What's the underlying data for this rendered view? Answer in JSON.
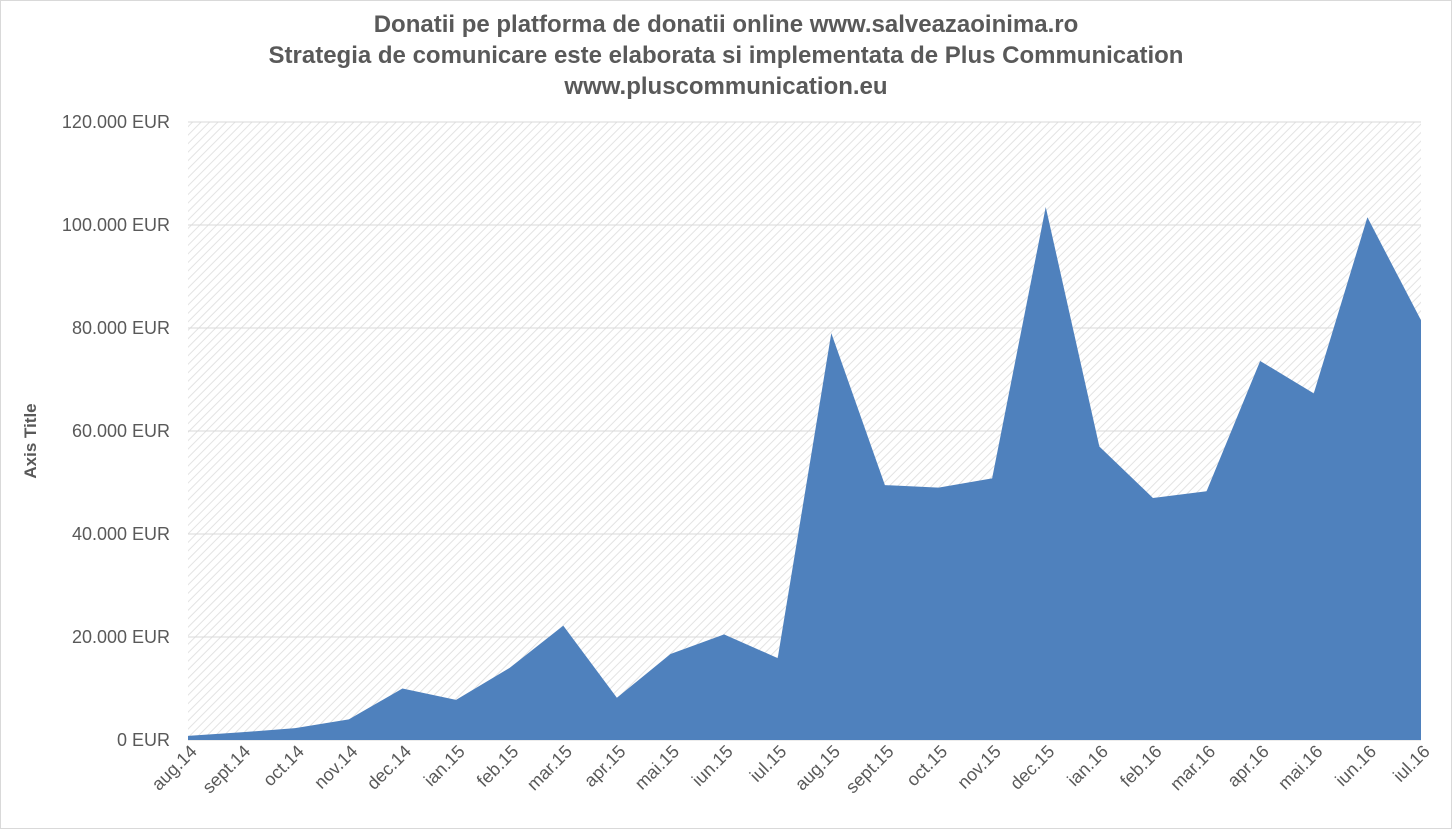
{
  "chart_data": {
    "type": "area",
    "title": [
      "Donatii pe platforma de donatii online www.salveazaoinima.ro",
      "Strategia de comunicare este elaborata si implementata de Plus Communication",
      "www.pluscommunication.eu"
    ],
    "xlabel": "",
    "ylabel": "Axis Title",
    "ylim": [
      0,
      120000
    ],
    "yticks": [
      0,
      20000,
      40000,
      60000,
      80000,
      100000,
      120000
    ],
    "ytick_labels": [
      "0 EUR",
      "20.000 EUR",
      "40.000 EUR",
      "60.000 EUR",
      "80.000 EUR",
      "100.000 EUR",
      "120.000 EUR"
    ],
    "categories": [
      "aug.14",
      "sept.14",
      "oct.14",
      "nov.14",
      "dec.14",
      "ian.15",
      "feb.15",
      "mar.15",
      "apr.15",
      "mai.15",
      "iun.15",
      "iul.15",
      "aug.15",
      "sept.15",
      "oct.15",
      "nov.15",
      "dec.15",
      "ian.16",
      "feb.16",
      "mar.16",
      "apr.16",
      "mai.16",
      "iun.16",
      "iul.16"
    ],
    "series": [
      {
        "values": [
          800,
          1500,
          2300,
          4000,
          10000,
          7800,
          14000,
          22200,
          8200,
          16700,
          20500,
          15900,
          79000,
          49500,
          49000,
          50800,
          103500,
          57000,
          47000,
          48300,
          73600,
          67300,
          101500,
          81500
        ],
        "color": "#4f81bd"
      }
    ],
    "grid": true,
    "legend": "none",
    "colors": {
      "area": "#4f81bd",
      "grid": "#d9d9d9",
      "text": "#595959"
    }
  }
}
